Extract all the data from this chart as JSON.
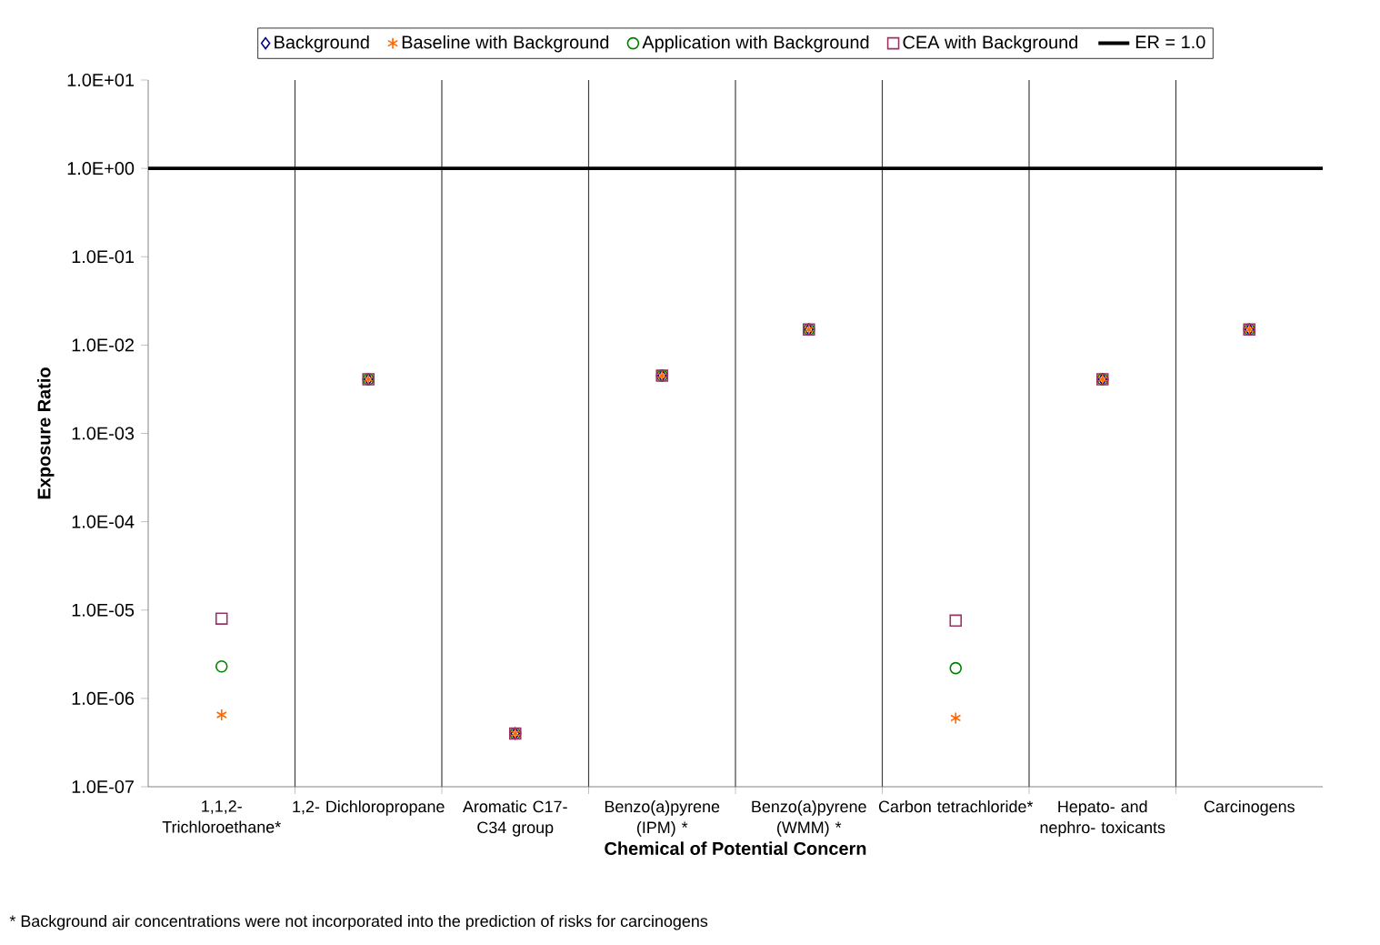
{
  "chart_data": {
    "type": "scatter",
    "xlabel": "Chemical of Potential Concern",
    "ylabel": "Exposure Ratio",
    "categories": [
      "1,1,2- Trichloroethane*",
      "1,2- Dichloropropane",
      "Aromatic C17-C34 group",
      "Benzo(a)pyrene (IPM) *",
      "Benzo(a)pyrene (WMM) *",
      "Carbon tetrachloride*",
      "Hepato- and nephro- toxicants",
      "Carcinogens"
    ],
    "series": [
      {
        "name": "Background",
        "color": "#000080",
        "marker": "diamond",
        "values": [
          null,
          0.0041,
          4e-07,
          0.0045,
          0.015,
          null,
          0.0041,
          0.015
        ]
      },
      {
        "name": "Baseline with Background",
        "color": "#ff6600",
        "marker": "cross",
        "values": [
          6.5e-07,
          0.0041,
          4e-07,
          0.0045,
          0.015,
          6e-07,
          0.0041,
          0.015
        ]
      },
      {
        "name": "Application with Background",
        "color": "#008000",
        "marker": "circle",
        "values": [
          2.3e-06,
          0.0041,
          4e-07,
          0.0045,
          0.015,
          2.2e-06,
          0.0041,
          0.015
        ]
      },
      {
        "name": "CEA with Background",
        "color": "#993366",
        "marker": "square",
        "values": [
          8e-06,
          0.0041,
          4e-07,
          0.0045,
          0.015,
          7.6e-06,
          0.0041,
          0.015
        ]
      }
    ],
    "log": "y",
    "ylim": [
      1e-07,
      10
    ],
    "yticks": [
      {
        "value": 1e-07,
        "label": "1.0E-07"
      },
      {
        "value": 1e-06,
        "label": "1.0E-06"
      },
      {
        "value": 1e-05,
        "label": "1.0E-05"
      },
      {
        "value": 0.0001,
        "label": "1.0E-04"
      },
      {
        "value": 0.001,
        "label": "1.0E-03"
      },
      {
        "value": 0.01,
        "label": "1.0E-02"
      },
      {
        "value": 0.1,
        "label": "1.0E-01"
      },
      {
        "value": 1,
        "label": "1.0E+00"
      },
      {
        "value": 10,
        "label": "1.0E+01"
      }
    ],
    "ref_lines": [
      {
        "axis": "y",
        "value": 1,
        "label": "ER = 1.0",
        "color": "#000000",
        "line_style": "solid"
      }
    ],
    "grid": "x",
    "legend": "top",
    "annotations": [
      "* Background air concentrations were not incorporated into the prediction of risks for carcinogens"
    ]
  }
}
